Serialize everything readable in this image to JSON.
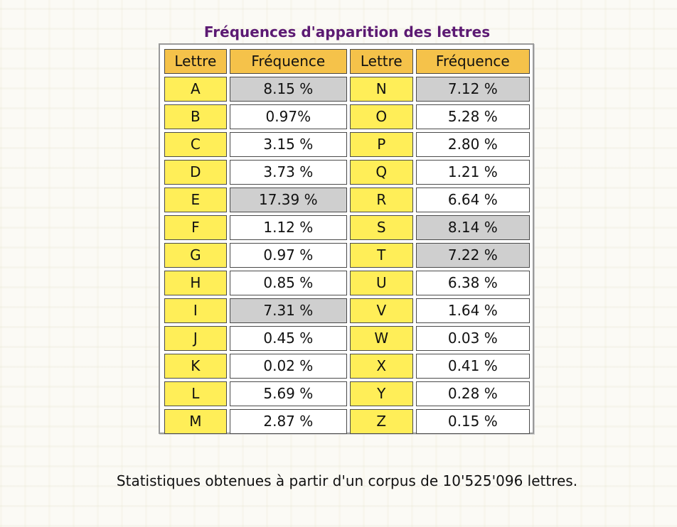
{
  "title": "Fréquences d'apparition des lettres",
  "headers": {
    "letter": "Lettre",
    "frequency": "Fréquence"
  },
  "rows": [
    {
      "l1": "A",
      "f1": "8.15 %",
      "l2": "N",
      "f2": "7.12 %"
    },
    {
      "l1": "B",
      "f1": "0.97%",
      "l2": "O",
      "f2": "5.28 %"
    },
    {
      "l1": "C",
      "f1": "3.15 %",
      "l2": "P",
      "f2": "2.80 %"
    },
    {
      "l1": "D",
      "f1": "3.73 %",
      "l2": "Q",
      "f2": "1.21 %"
    },
    {
      "l1": "E",
      "f1": "17.39 %",
      "l2": "R",
      "f2": "6.64 %"
    },
    {
      "l1": "F",
      "f1": "1.12 %",
      "l2": "S",
      "f2": "8.14 %"
    },
    {
      "l1": "G",
      "f1": "0.97 %",
      "l2": "T",
      "f2": "7.22 %"
    },
    {
      "l1": "H",
      "f1": "0.85 %",
      "l2": "U",
      "f2": "6.38 %"
    },
    {
      "l1": "I",
      "f1": "7.31 %",
      "l2": "V",
      "f2": "1.64 %"
    },
    {
      "l1": "J",
      "f1": "0.45 %",
      "l2": "W",
      "f2": "0.03 %"
    },
    {
      "l1": "K",
      "f1": "0.02 %",
      "l2": "X",
      "f2": "0.41 %"
    },
    {
      "l1": "L",
      "f1": "5.69 %",
      "l2": "Y",
      "f2": "0.28 %"
    },
    {
      "l1": "M",
      "f1": "2.87 %",
      "l2": "Z",
      "f2": "0.15 %"
    }
  ],
  "highlighted_letters": [
    "A",
    "E",
    "I",
    "N",
    "S",
    "T"
  ],
  "footer": "Statistiques obtenues à partir d'un corpus de 10'525'096 lettres.",
  "colors": {
    "title": "#5c1a73",
    "header_bg": "#f5c24a",
    "letter_bg": "#ffee58",
    "highlight_bg": "#cfcfcf",
    "value_bg": "#ffffff"
  }
}
